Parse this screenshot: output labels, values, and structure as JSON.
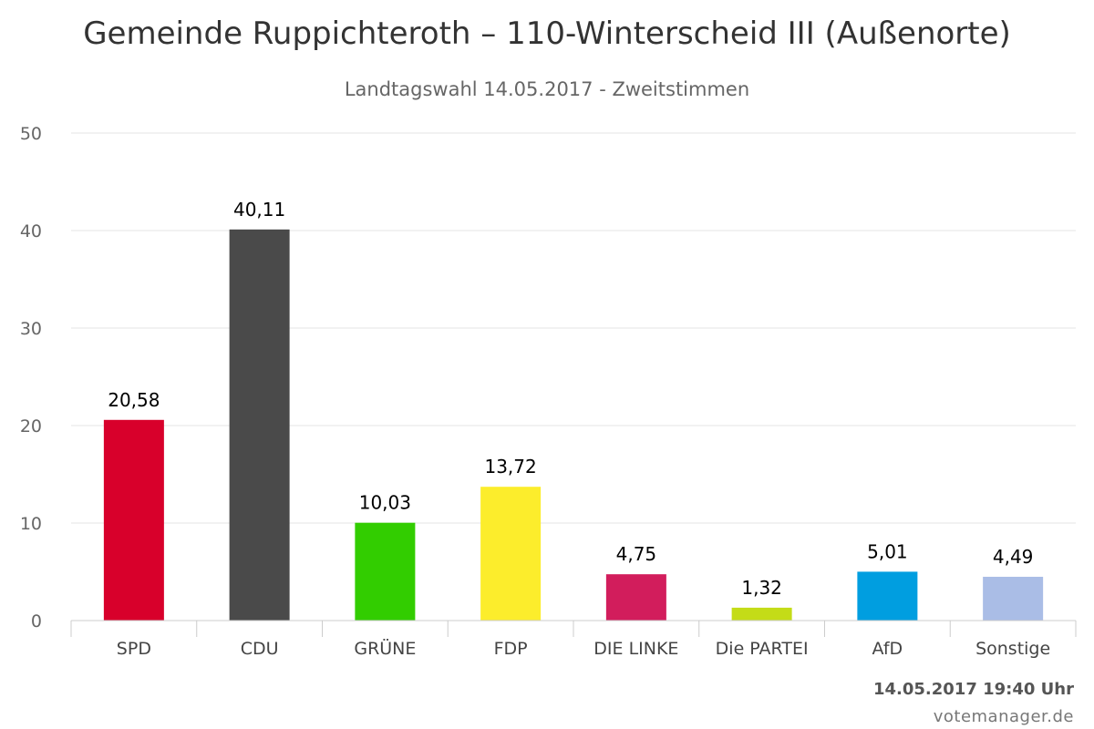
{
  "chart_data": {
    "type": "bar",
    "title": "Gemeinde Ruppichteroth – 110-Winterscheid III (Außenorte)",
    "subtitle": "Landtagswahl 14.05.2017 - Zweitstimmen",
    "categories": [
      "SPD",
      "CDU",
      "GRÜNE",
      "FDP",
      "DIE LINKE",
      "Die PARTEI",
      "AfD",
      "Sonstige"
    ],
    "values": [
      20.58,
      40.11,
      10.03,
      13.72,
      4.75,
      1.32,
      5.01,
      4.49
    ],
    "value_labels": [
      "20,58",
      "40,11",
      "10,03",
      "13,72",
      "4,75",
      "1,32",
      "5,01",
      "4,49"
    ],
    "colors": [
      "#d8002b",
      "#4a4a4a",
      "#32cd00",
      "#fced2c",
      "#d21d5c",
      "#c4dc17",
      "#009ee0",
      "#aabde6"
    ],
    "ylim": [
      0,
      50
    ],
    "yticks": [
      "0",
      "10",
      "20",
      "30",
      "40",
      "50"
    ],
    "ytick_values": [
      0,
      10,
      20,
      30,
      40,
      50
    ],
    "xlabel": "",
    "ylabel": "",
    "grid": true,
    "legend": "none"
  },
  "footer": {
    "timestamp": "14.05.2017 19:40 Uhr",
    "credit": "votemanager.de"
  }
}
